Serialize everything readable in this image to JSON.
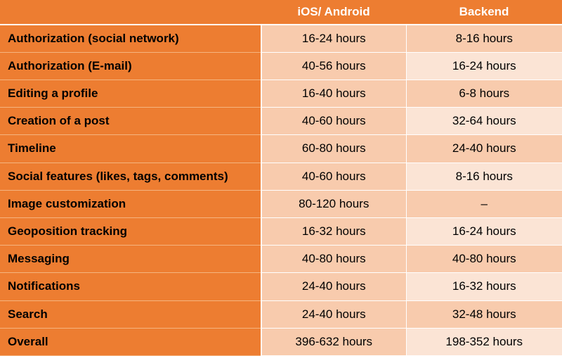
{
  "table": {
    "headers": [
      "",
      "iOS/ Android",
      "Backend"
    ],
    "rows": [
      {
        "feature": "Authorization (social network)",
        "ios_android": "16-24 hours",
        "backend": "8-16 hours"
      },
      {
        "feature": "Authorization (E-mail)",
        "ios_android": "40-56 hours",
        "backend": "16-24 hours"
      },
      {
        "feature": "Editing a profile",
        "ios_android": "16-40 hours",
        "backend": "6-8 hours"
      },
      {
        "feature": "Creation of a post",
        "ios_android": "40-60 hours",
        "backend": "32-64 hours"
      },
      {
        "feature": "Timeline",
        "ios_android": "60-80 hours",
        "backend": "24-40 hours"
      },
      {
        "feature": "Social features (likes, tags, comments)",
        "ios_android": "40-60 hours",
        "backend": "8-16 hours"
      },
      {
        "feature": "Image customization",
        "ios_android": "80-120 hours",
        "backend": "–"
      },
      {
        "feature": "Geoposition tracking",
        "ios_android": "16-32 hours",
        "backend": "16-24 hours"
      },
      {
        "feature": "Messaging",
        "ios_android": "40-80 hours",
        "backend": "40-80 hours"
      },
      {
        "feature": "Notifications",
        "ios_android": "24-40 hours",
        "backend": "16-32 hours"
      },
      {
        "feature": "Search",
        "ios_android": "24-40 hours",
        "backend": "32-48 hours"
      },
      {
        "feature": "Overall",
        "ios_android": "396-632 hours",
        "backend": "198-352 hours"
      }
    ]
  },
  "colors": {
    "header_bg": "#ed7d31",
    "label_bg": "#ed7d31",
    "cell_dark": "#f8cbad",
    "cell_light": "#fbe4d5"
  }
}
